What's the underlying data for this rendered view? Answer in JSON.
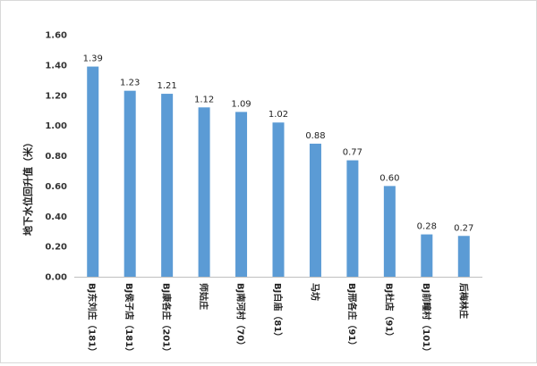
{
  "chart_data": {
    "type": "bar",
    "title": "",
    "xlabel": "",
    "ylabel": "地下水位回升值（米）",
    "ylim": [
      0,
      1.6
    ],
    "yticks": [
      "0.00",
      "0.20",
      "0.40",
      "0.60",
      "0.80",
      "1.00",
      "1.20",
      "1.40",
      "1.60"
    ],
    "grid": false,
    "categories": [
      "BJ东刘庄（181）",
      "BJ侯子店（181）",
      "BJ康各庄（201）",
      "师姑庄",
      "BJ南河村（70）",
      "BJ白庙（81）",
      "马坊",
      "BJ邢各庄（91）",
      "BJ杜店（91）",
      "BJ前疃村（101）",
      "后梅林庄"
    ],
    "values": [
      1.39,
      1.23,
      1.21,
      1.12,
      1.09,
      1.02,
      0.88,
      0.77,
      0.6,
      0.28,
      0.27
    ],
    "data_labels": [
      "1.39",
      "1.23",
      "1.21",
      "1.12",
      "1.09",
      "1.02",
      "0.88",
      "0.77",
      "0.60",
      "0.28",
      "0.27"
    ],
    "bar_color": "#5b9bd5"
  }
}
